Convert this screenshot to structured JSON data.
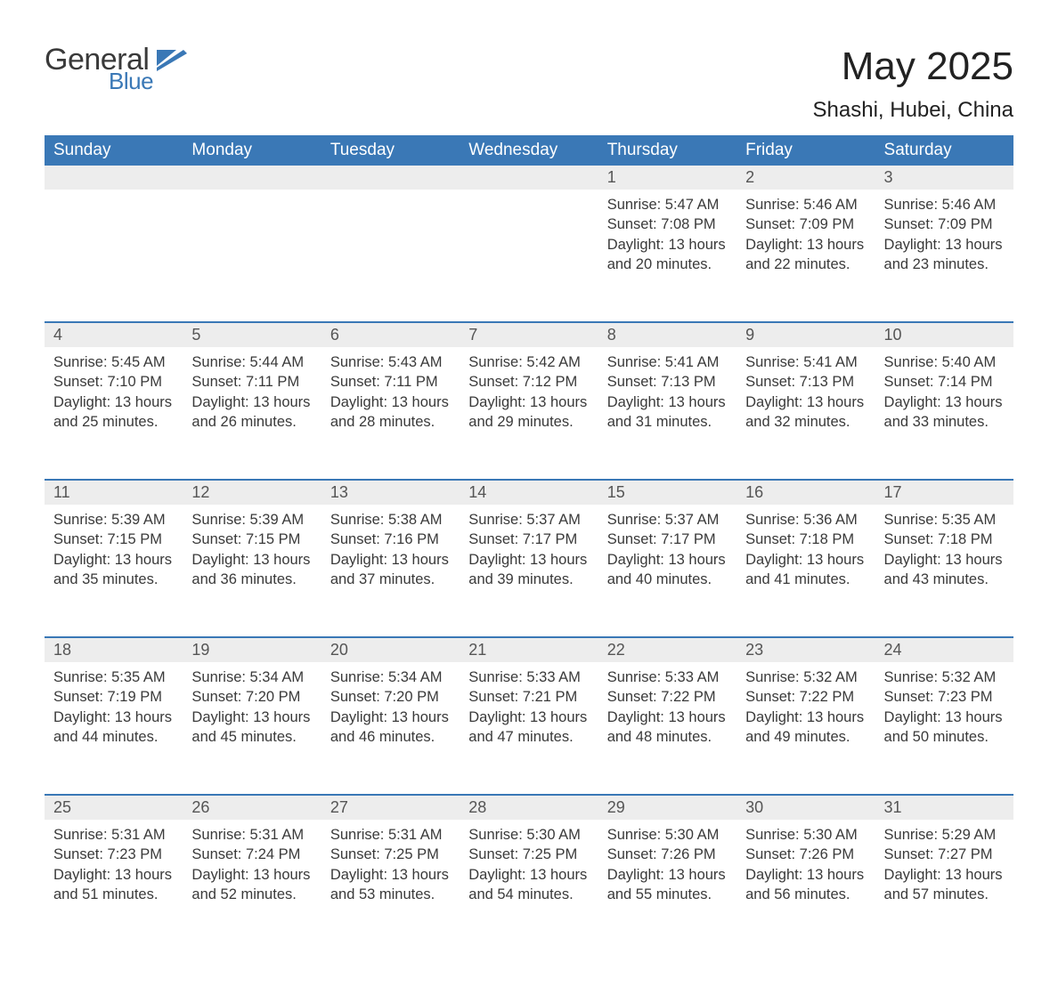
{
  "brand": {
    "general": "General",
    "blue": "Blue",
    "logo_color": "#3a78b6"
  },
  "title": "May 2025",
  "subtitle": "Shashi, Hubei, China",
  "headers": [
    "Sunday",
    "Monday",
    "Tuesday",
    "Wednesday",
    "Thursday",
    "Friday",
    "Saturday"
  ],
  "header_bg": "#3a78b6",
  "header_fg": "#ffffff",
  "daynum_bg": "#ededed",
  "row_border_color": "#3a78b6",
  "text_color": "#3a3a3a",
  "title_fontsize": 44,
  "subtitle_fontsize": 24,
  "header_fontsize": 19,
  "daynum_fontsize": 18,
  "body_fontsize": 16.5,
  "weeks": [
    [
      null,
      null,
      null,
      null,
      {
        "n": "1",
        "sunrise": "5:47 AM",
        "sunset": "7:08 PM",
        "dl_h": "13",
        "dl_m": "20"
      },
      {
        "n": "2",
        "sunrise": "5:46 AM",
        "sunset": "7:09 PM",
        "dl_h": "13",
        "dl_m": "22"
      },
      {
        "n": "3",
        "sunrise": "5:46 AM",
        "sunset": "7:09 PM",
        "dl_h": "13",
        "dl_m": "23"
      }
    ],
    [
      {
        "n": "4",
        "sunrise": "5:45 AM",
        "sunset": "7:10 PM",
        "dl_h": "13",
        "dl_m": "25"
      },
      {
        "n": "5",
        "sunrise": "5:44 AM",
        "sunset": "7:11 PM",
        "dl_h": "13",
        "dl_m": "26"
      },
      {
        "n": "6",
        "sunrise": "5:43 AM",
        "sunset": "7:11 PM",
        "dl_h": "13",
        "dl_m": "28"
      },
      {
        "n": "7",
        "sunrise": "5:42 AM",
        "sunset": "7:12 PM",
        "dl_h": "13",
        "dl_m": "29"
      },
      {
        "n": "8",
        "sunrise": "5:41 AM",
        "sunset": "7:13 PM",
        "dl_h": "13",
        "dl_m": "31"
      },
      {
        "n": "9",
        "sunrise": "5:41 AM",
        "sunset": "7:13 PM",
        "dl_h": "13",
        "dl_m": "32"
      },
      {
        "n": "10",
        "sunrise": "5:40 AM",
        "sunset": "7:14 PM",
        "dl_h": "13",
        "dl_m": "33"
      }
    ],
    [
      {
        "n": "11",
        "sunrise": "5:39 AM",
        "sunset": "7:15 PM",
        "dl_h": "13",
        "dl_m": "35"
      },
      {
        "n": "12",
        "sunrise": "5:39 AM",
        "sunset": "7:15 PM",
        "dl_h": "13",
        "dl_m": "36"
      },
      {
        "n": "13",
        "sunrise": "5:38 AM",
        "sunset": "7:16 PM",
        "dl_h": "13",
        "dl_m": "37"
      },
      {
        "n": "14",
        "sunrise": "5:37 AM",
        "sunset": "7:17 PM",
        "dl_h": "13",
        "dl_m": "39"
      },
      {
        "n": "15",
        "sunrise": "5:37 AM",
        "sunset": "7:17 PM",
        "dl_h": "13",
        "dl_m": "40"
      },
      {
        "n": "16",
        "sunrise": "5:36 AM",
        "sunset": "7:18 PM",
        "dl_h": "13",
        "dl_m": "41"
      },
      {
        "n": "17",
        "sunrise": "5:35 AM",
        "sunset": "7:18 PM",
        "dl_h": "13",
        "dl_m": "43"
      }
    ],
    [
      {
        "n": "18",
        "sunrise": "5:35 AM",
        "sunset": "7:19 PM",
        "dl_h": "13",
        "dl_m": "44"
      },
      {
        "n": "19",
        "sunrise": "5:34 AM",
        "sunset": "7:20 PM",
        "dl_h": "13",
        "dl_m": "45"
      },
      {
        "n": "20",
        "sunrise": "5:34 AM",
        "sunset": "7:20 PM",
        "dl_h": "13",
        "dl_m": "46"
      },
      {
        "n": "21",
        "sunrise": "5:33 AM",
        "sunset": "7:21 PM",
        "dl_h": "13",
        "dl_m": "47"
      },
      {
        "n": "22",
        "sunrise": "5:33 AM",
        "sunset": "7:22 PM",
        "dl_h": "13",
        "dl_m": "48"
      },
      {
        "n": "23",
        "sunrise": "5:32 AM",
        "sunset": "7:22 PM",
        "dl_h": "13",
        "dl_m": "49"
      },
      {
        "n": "24",
        "sunrise": "5:32 AM",
        "sunset": "7:23 PM",
        "dl_h": "13",
        "dl_m": "50"
      }
    ],
    [
      {
        "n": "25",
        "sunrise": "5:31 AM",
        "sunset": "7:23 PM",
        "dl_h": "13",
        "dl_m": "51"
      },
      {
        "n": "26",
        "sunrise": "5:31 AM",
        "sunset": "7:24 PM",
        "dl_h": "13",
        "dl_m": "52"
      },
      {
        "n": "27",
        "sunrise": "5:31 AM",
        "sunset": "7:25 PM",
        "dl_h": "13",
        "dl_m": "53"
      },
      {
        "n": "28",
        "sunrise": "5:30 AM",
        "sunset": "7:25 PM",
        "dl_h": "13",
        "dl_m": "54"
      },
      {
        "n": "29",
        "sunrise": "5:30 AM",
        "sunset": "7:26 PM",
        "dl_h": "13",
        "dl_m": "55"
      },
      {
        "n": "30",
        "sunrise": "5:30 AM",
        "sunset": "7:26 PM",
        "dl_h": "13",
        "dl_m": "56"
      },
      {
        "n": "31",
        "sunrise": "5:29 AM",
        "sunset": "7:27 PM",
        "dl_h": "13",
        "dl_m": "57"
      }
    ]
  ],
  "labels": {
    "sunrise": "Sunrise",
    "sunset": "Sunset",
    "daylight": "Daylight",
    "hours": "hours",
    "and": "and",
    "minutes": "minutes"
  }
}
